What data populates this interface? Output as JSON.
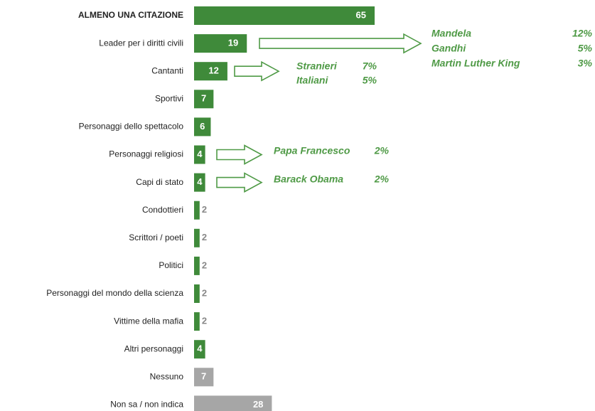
{
  "chart_data": {
    "type": "bar",
    "categories": [
      "ALMENO UNA CITAZIONE",
      "Leader per i diritti civili",
      "Cantanti",
      "Sportivi",
      "Personaggi dello spettacolo",
      "Personaggi religiosi",
      "Capi di stato",
      "Condottieri",
      "Scrittori / poeti",
      "Politici",
      "Personaggi del mondo della scienza",
      "Vittime della mafia",
      "Altri personaggi",
      "Nessuno",
      "Non sa / non indica"
    ],
    "values": [
      65,
      19,
      12,
      7,
      6,
      4,
      4,
      2,
      2,
      2,
      2,
      2,
      4,
      7,
      28
    ],
    "colors": [
      "#3f8a3a",
      "#3f8a3a",
      "#3f8a3a",
      "#3f8a3a",
      "#3f8a3a",
      "#3f8a3a",
      "#3f8a3a",
      "#3f8a3a",
      "#3f8a3a",
      "#3f8a3a",
      "#3f8a3a",
      "#3f8a3a",
      "#3f8a3a",
      "#a6a6a6",
      "#a6a6a6"
    ],
    "annotations": [
      {
        "category_index": 1,
        "items": [
          {
            "name": "Mandela",
            "share": "12%"
          },
          {
            "name": "Gandhi",
            "share": "5%"
          },
          {
            "name": "Martin Luther King",
            "share": "3%"
          }
        ]
      },
      {
        "category_index": 2,
        "items": [
          {
            "name": "Stranieri",
            "share": "7%"
          },
          {
            "name": "Italiani",
            "share": "5%"
          }
        ]
      },
      {
        "category_index": 5,
        "items": [
          {
            "name": "Papa Francesco",
            "share": "2%"
          }
        ]
      },
      {
        "category_index": 6,
        "items": [
          {
            "name": "Barack Obama",
            "share": "2%"
          }
        ]
      }
    ]
  }
}
